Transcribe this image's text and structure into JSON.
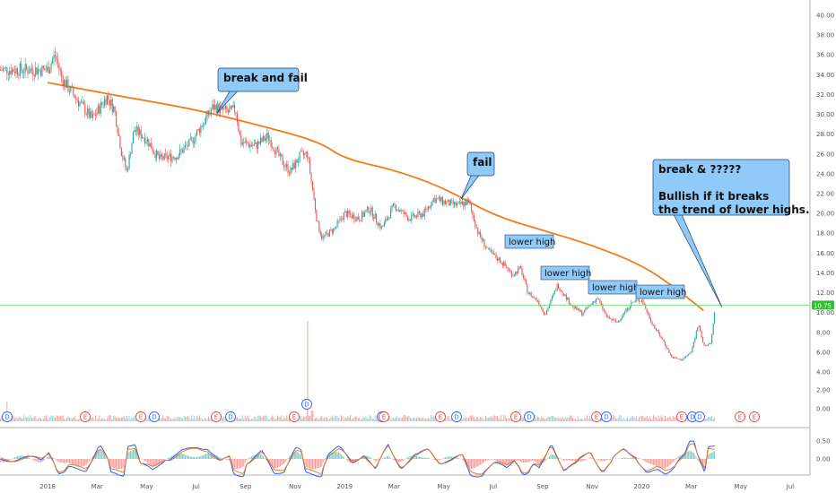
{
  "chart_data": {
    "type": "candlestick",
    "price_axis": {
      "ticks": [
        "40.00",
        "38.00",
        "36.00",
        "34.00",
        "32.00",
        "30.00",
        "28.00",
        "26.00",
        "24.00",
        "22.00",
        "20.00",
        "18.00",
        "16.00",
        "14.00",
        "12.00",
        "10.00",
        "8.00",
        "6.00",
        "4.00"
      ],
      "range": [
        3,
        41
      ]
    },
    "volume_axis": {
      "ticks": [
        "2.00",
        "0.00"
      ]
    },
    "oscillator_axis": {
      "ticks": [
        "0.50",
        "0.00"
      ]
    },
    "time_axis": {
      "ticks": [
        "2018",
        "Mar",
        "May",
        "Jul",
        "Sep",
        "Nov",
        "2019",
        "Mar",
        "May",
        "Jul",
        "Sep",
        "Nov",
        "2020",
        "Mar",
        "May",
        "Jul"
      ],
      "tick_months": [
        0,
        2,
        4,
        6,
        8,
        10,
        12,
        14,
        16,
        18,
        20,
        22,
        24,
        26,
        28,
        30
      ]
    },
    "last_price": {
      "value": 10.75,
      "label": "10.75",
      "color": "#30c030"
    },
    "horizontal_line": {
      "value": 10.75,
      "color": "#7ee07e"
    },
    "moving_average": {
      "color": "#f07d1a",
      "points": [
        [
          0,
          33.2
        ],
        [
          3,
          31.8
        ],
        [
          6,
          30.5
        ],
        [
          9,
          28.6
        ],
        [
          11,
          27.2
        ],
        [
          12,
          25.5
        ],
        [
          14,
          24.4
        ],
        [
          16,
          22.6
        ],
        [
          18,
          19.8
        ],
        [
          20,
          18.3
        ],
        [
          22,
          16.8
        ],
        [
          24,
          14.8
        ],
        [
          25.3,
          12.6
        ],
        [
          26.5,
          10.2
        ]
      ]
    },
    "price_path": [
      [
        0,
        34.5
      ],
      [
        0.3,
        36.0
      ],
      [
        0.6,
        33.5
      ],
      [
        1.2,
        31.5
      ],
      [
        1.8,
        29.5
      ],
      [
        2.4,
        31.8
      ],
      [
        2.7,
        30.5
      ],
      [
        3.0,
        26.0
      ],
      [
        3.2,
        24.2
      ],
      [
        3.5,
        28.5
      ],
      [
        4.0,
        27.5
      ],
      [
        4.5,
        25.5
      ],
      [
        5.2,
        25.8
      ],
      [
        5.8,
        27.2
      ],
      [
        6.3,
        29.2
      ],
      [
        6.7,
        30.8
      ],
      [
        7.3,
        30.2
      ],
      [
        7.6,
        30.5
      ],
      [
        7.8,
        27.2
      ],
      [
        8.4,
        26.8
      ],
      [
        8.9,
        27.8
      ],
      [
        9.4,
        25.5
      ],
      [
        9.8,
        24.2
      ],
      [
        10.2,
        25.8
      ],
      [
        10.5,
        26.0
      ],
      [
        10.9,
        19.0
      ],
      [
        11.1,
        17.5
      ],
      [
        11.6,
        18.5
      ],
      [
        12.0,
        20.0
      ],
      [
        12.6,
        19.5
      ],
      [
        13.0,
        20.5
      ],
      [
        13.5,
        18.5
      ],
      [
        14.0,
        20.8
      ],
      [
        14.6,
        19.5
      ],
      [
        15.2,
        20.0
      ],
      [
        15.6,
        21.5
      ],
      [
        16.2,
        21.0
      ],
      [
        16.6,
        20.8
      ],
      [
        17.0,
        21.2
      ],
      [
        17.4,
        18.0
      ],
      [
        17.8,
        16.2
      ],
      [
        18.3,
        15.2
      ],
      [
        18.8,
        13.8
      ],
      [
        19.1,
        14.5
      ],
      [
        19.4,
        12.0
      ],
      [
        19.8,
        11.2
      ],
      [
        20.1,
        9.8
      ],
      [
        20.6,
        12.8
      ],
      [
        21.2,
        10.6
      ],
      [
        21.6,
        9.9
      ],
      [
        22.2,
        11.5
      ],
      [
        22.6,
        9.5
      ],
      [
        23.0,
        9.0
      ],
      [
        23.6,
        11.0
      ],
      [
        24.0,
        11.3
      ],
      [
        24.4,
        9.0
      ],
      [
        24.9,
        7.0
      ],
      [
        25.2,
        5.5
      ],
      [
        25.6,
        5.2
      ],
      [
        26.0,
        6.0
      ],
      [
        26.3,
        9.0
      ],
      [
        26.5,
        6.5
      ],
      [
        26.8,
        7.0
      ],
      [
        27.0,
        11.0
      ]
    ],
    "annotations": [
      {
        "text": "break and fail"
      },
      {
        "text": "fail"
      },
      {
        "text": "lower high"
      },
      {
        "text": "lower high"
      },
      {
        "text": "lower high"
      },
      {
        "text": "lower high"
      },
      {
        "text": "break & ?????",
        "line2": "Bullish if it breaks",
        "line3": "the trend of lower highs."
      }
    ],
    "events": [
      {
        "text": "D",
        "color": "#2962ff"
      },
      {
        "text": "E",
        "color": "#e04a4a"
      },
      {
        "text": "E",
        "color": "#e04a4a"
      },
      {
        "text": "D",
        "color": "#2962ff"
      },
      {
        "text": "E",
        "color": "#e04a4a"
      },
      {
        "text": "D",
        "color": "#2962ff"
      },
      {
        "text": "E",
        "color": "#e04a4a"
      },
      {
        "text": "D",
        "color": "#2962ff"
      },
      {
        "text": "D",
        "color": "#2962ff"
      },
      {
        "text": "E",
        "color": "#e04a4a"
      },
      {
        "text": "E",
        "color": "#e04a4a"
      },
      {
        "text": "D",
        "color": "#2962ff"
      },
      {
        "text": "E",
        "color": "#e04a4a"
      },
      {
        "text": "D",
        "color": "#2962ff"
      },
      {
        "text": "E",
        "color": "#e04a4a"
      },
      {
        "text": "D",
        "color": "#2962ff"
      },
      {
        "text": "E",
        "color": "#e04a4a"
      },
      {
        "text": "D",
        "color": "#2962ff"
      },
      {
        "text": "D",
        "color": "#2962ff"
      },
      {
        "text": "E",
        "color": "#e04a4a"
      },
      {
        "text": "E",
        "color": "#e04a4a"
      }
    ],
    "colors": {
      "up": "#26a69a",
      "down": "#ef5350",
      "callout_fill": "#90caf9",
      "callout_border": "#1f3f6f",
      "volume_up": "#9ad8d1",
      "volume_down": "#f3a6a4",
      "macd": "#2962ff",
      "signal": "#f07d1a"
    }
  }
}
